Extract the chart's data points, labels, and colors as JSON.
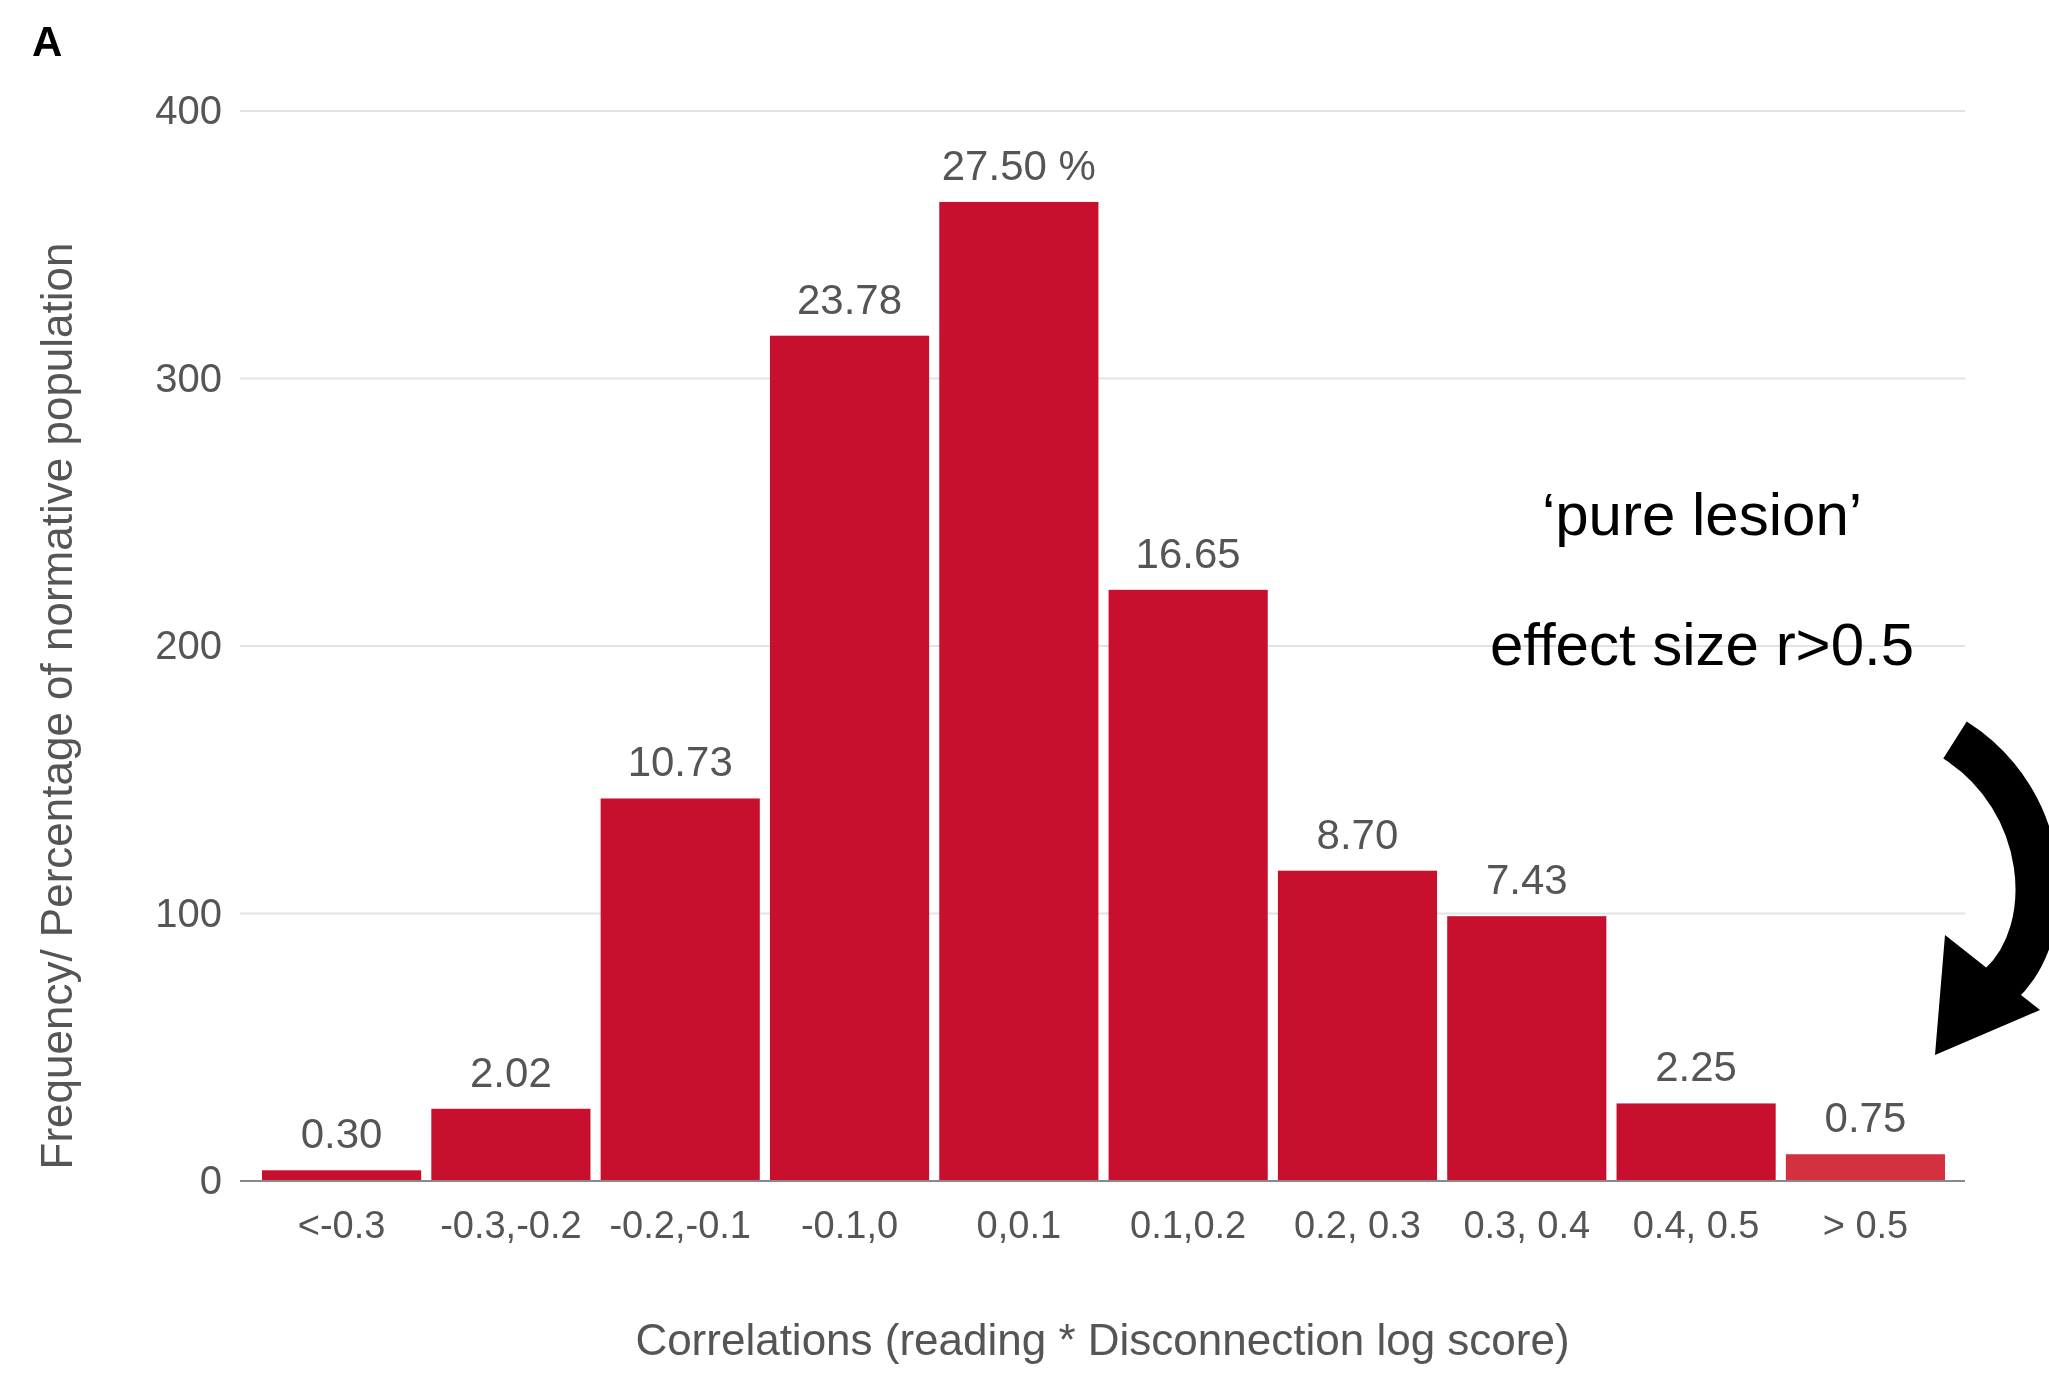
{
  "chart_data": {
    "type": "bar",
    "title": "A",
    "xlabel": "Correlations (reading * Disconnection log score)",
    "ylabel": "Frequency/ Percentage of normative population",
    "categories": [
      "<-0.3",
      "-0.3,-0.2",
      "-0.2,-0.1",
      "-0.1,0",
      "0,0.1",
      "0.1,0.2",
      "0.2, 0.3",
      "0.3, 0.4",
      "0.4, 0.5",
      "> 0.5"
    ],
    "values": [
      4,
      27,
      143,
      316,
      366,
      221,
      116,
      99,
      29,
      10
    ],
    "colors": [
      "#c8102e",
      "#c8102e",
      "#c8102e",
      "#c8102e",
      "#c8102e",
      "#c8102e",
      "#c8102e",
      "#c8102e",
      "#c8102e",
      "#d4313f"
    ],
    "ylim": [
      0,
      400
    ],
    "yticks": [
      0,
      100,
      200,
      300,
      400
    ],
    "grid": "y",
    "annotations": [
      "‘pure lesion’",
      "effect size r>0.5",
      {
        "text": "0.30",
        "x": "<-0.3",
        "y": 4
      },
      {
        "text": "2.02",
        "x": "-0.3,-0.2",
        "y": 27
      },
      {
        "text": "10.73",
        "x": "-0.2,-0.1",
        "y": 143
      },
      {
        "text": "23.78",
        "x": "-0.1,0",
        "y": 316
      },
      {
        "text": "27.50 %",
        "x": "0,0.1",
        "y": 366
      },
      {
        "text": "16.65",
        "x": "0.1,0.2",
        "y": 221
      },
      {
        "text": "8.70",
        "x": "0.2, 0.3",
        "y": 116
      },
      {
        "text": "7.43",
        "x": "0.3, 0.4",
        "y": 99
      },
      {
        "text": "2.25",
        "x": "0.4, 0.5",
        "y": 29
      },
      {
        "text": "0.75",
        "x": "> 0.5",
        "y": 10
      }
    ]
  }
}
